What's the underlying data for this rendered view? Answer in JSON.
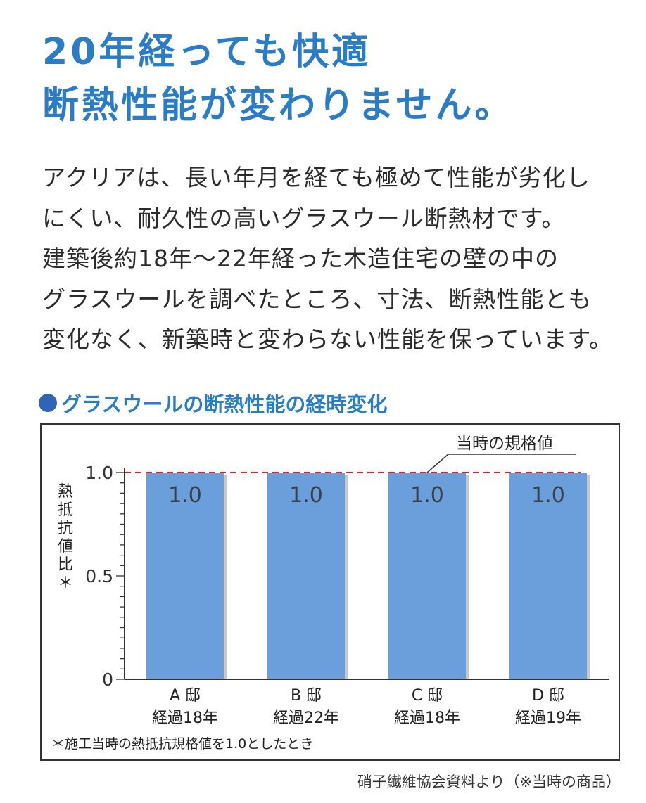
{
  "headline": {
    "line1": "20年経っても快適",
    "line2": "断熱性能が変わりません。"
  },
  "body": {
    "lines": [
      "アクリアは、長い年月を経ても極めて性能が劣化し",
      "にくい、耐久性の高いグラスウール断熱材です。",
      "建築後約18年～22年経った木造住宅の壁の中の",
      "グラスウールを調べたところ、寸法、断熱性能とも",
      "変化なく、新築時と変わらない性能を保っています。"
    ]
  },
  "section_title": "グラスウールの断熱性能の経時変化",
  "colors": {
    "headline": "#2a7cc7",
    "bar": "#6a9fdb",
    "bar_shadow": "#c8c8c8",
    "reference_line": "#d8242a",
    "bullet": "#2f64b6"
  },
  "chart_data": {
    "type": "bar",
    "categories": [
      "A 邸\n経過18年",
      "B 邸\n経過22年",
      "C 邸\n経過18年",
      "D 邸\n経過19年"
    ],
    "values": [
      1.0,
      1.0,
      1.0,
      1.0
    ],
    "data_labels": [
      "1.0",
      "1.0",
      "1.0",
      "1.0"
    ],
    "ylabel": "熱抵抗値比＊",
    "ylim": [
      0,
      1.0
    ],
    "yticks": [
      0,
      0.5,
      1.0
    ],
    "ytick_labels": [
      "0",
      "0.5",
      "1.0"
    ],
    "reference_line": {
      "value": 1.0,
      "label": "当時の規格値",
      "style": "dashed"
    },
    "grid": false,
    "footnote": "＊施工当時の熱抵抗規格値を1.0としたとき"
  },
  "source": "硝子繊維協会資料より（※当時の商品）"
}
